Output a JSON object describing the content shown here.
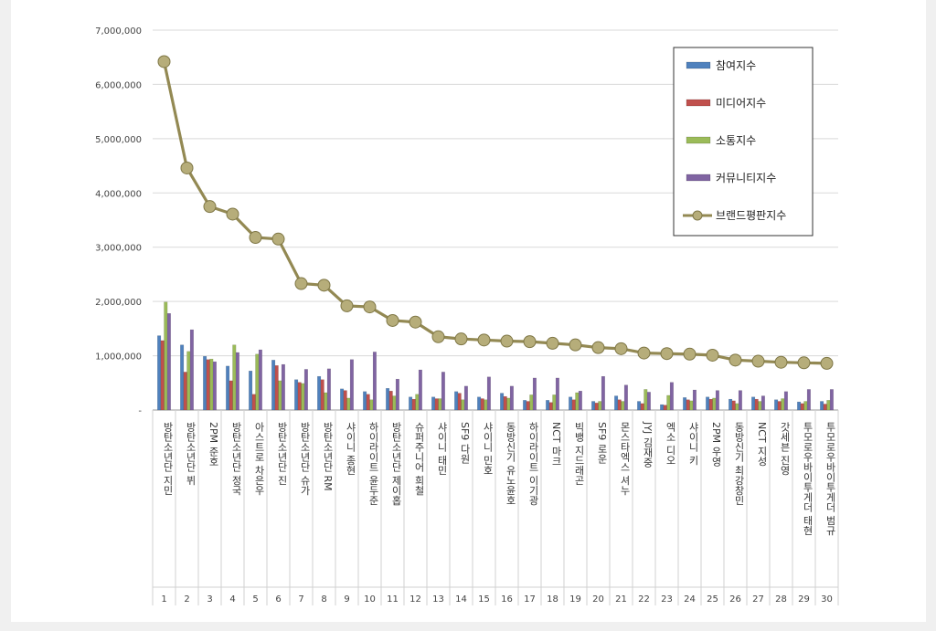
{
  "chart_data": {
    "type": "bar",
    "title": "",
    "xlabel": "",
    "ylabel": "",
    "ylim": [
      0,
      7000000
    ],
    "y_ticks": [
      "-",
      "1,000,000",
      "2,000,000",
      "3,000,000",
      "4,000,000",
      "5,000,000",
      "6,000,000",
      "7,000,000"
    ],
    "grid": true,
    "legend_position": "top-right",
    "ranks": [
      "1",
      "2",
      "3",
      "4",
      "5",
      "6",
      "7",
      "8",
      "9",
      "10",
      "11",
      "12",
      "13",
      "14",
      "15",
      "16",
      "17",
      "18",
      "19",
      "20",
      "21",
      "22",
      "23",
      "24",
      "25",
      "26",
      "27",
      "28",
      "29",
      "30"
    ],
    "categories": [
      "방탄소년단 지민",
      "방탄소년단 뷔",
      "2PM 준호",
      "방탄소년단 정국",
      "아스트로 차은우",
      "방탄소년단 진",
      "방탄소년단 슈가",
      "방탄소년단 RM",
      "샤이니 종현",
      "하이라이트 윤두준",
      "방탄소년단 제이홉",
      "슈퍼주니어 희철",
      "샤이니 태민",
      "SF9 다원",
      "샤이니 민호",
      "동방신기 유노윤호",
      "하이라이트 이기광",
      "NCT 마크",
      "빅뱅 지드래곤",
      "SF9 로운",
      "몬스타엑스 셔누",
      "JYJ 김재중",
      "엑소 디오",
      "샤이니 키",
      "2PM 우영",
      "동방신기 최강창민",
      "NCT 지성",
      "갓세븐 진영",
      "투모로우바이투게더 태현",
      "투모로우바이투게더 범규"
    ],
    "series": [
      {
        "name": "참여지수",
        "color": "#4f81bd",
        "type": "bar",
        "values": [
          1370000,
          1200000,
          990000,
          810000,
          720000,
          920000,
          560000,
          620000,
          390000,
          340000,
          400000,
          240000,
          240000,
          340000,
          240000,
          310000,
          180000,
          180000,
          240000,
          160000,
          260000,
          160000,
          100000,
          230000,
          240000,
          200000,
          240000,
          190000,
          150000,
          160000
        ]
      },
      {
        "name": "미디어지수",
        "color": "#c0504d",
        "type": "bar",
        "values": [
          1280000,
          700000,
          930000,
          540000,
          290000,
          820000,
          510000,
          560000,
          360000,
          290000,
          350000,
          200000,
          210000,
          310000,
          210000,
          250000,
          160000,
          140000,
          190000,
          130000,
          190000,
          120000,
          90000,
          190000,
          200000,
          170000,
          200000,
          160000,
          120000,
          110000
        ]
      },
      {
        "name": "소통지수",
        "color": "#9bbb59",
        "type": "bar",
        "values": [
          1990000,
          1080000,
          940000,
          1200000,
          1030000,
          540000,
          490000,
          320000,
          220000,
          190000,
          260000,
          290000,
          210000,
          190000,
          190000,
          220000,
          280000,
          280000,
          320000,
          160000,
          160000,
          380000,
          270000,
          170000,
          220000,
          120000,
          160000,
          210000,
          160000,
          180000
        ]
      },
      {
        "name": "커뮤니티지수",
        "color": "#8064a2",
        "type": "bar",
        "values": [
          1780000,
          1480000,
          890000,
          1060000,
          1110000,
          840000,
          750000,
          760000,
          930000,
          1070000,
          570000,
          740000,
          700000,
          440000,
          610000,
          440000,
          590000,
          590000,
          350000,
          620000,
          460000,
          330000,
          510000,
          370000,
          360000,
          360000,
          260000,
          340000,
          380000,
          380000
        ]
      },
      {
        "name": "브랜드평판지수",
        "color": "#938953",
        "type": "line",
        "values": [
          6420000,
          4460000,
          3750000,
          3610000,
          3180000,
          3150000,
          2330000,
          2300000,
          1920000,
          1900000,
          1650000,
          1620000,
          1350000,
          1310000,
          1290000,
          1270000,
          1260000,
          1230000,
          1200000,
          1150000,
          1130000,
          1050000,
          1040000,
          1030000,
          1010000,
          920000,
          900000,
          880000,
          870000,
          860000
        ]
      }
    ]
  }
}
